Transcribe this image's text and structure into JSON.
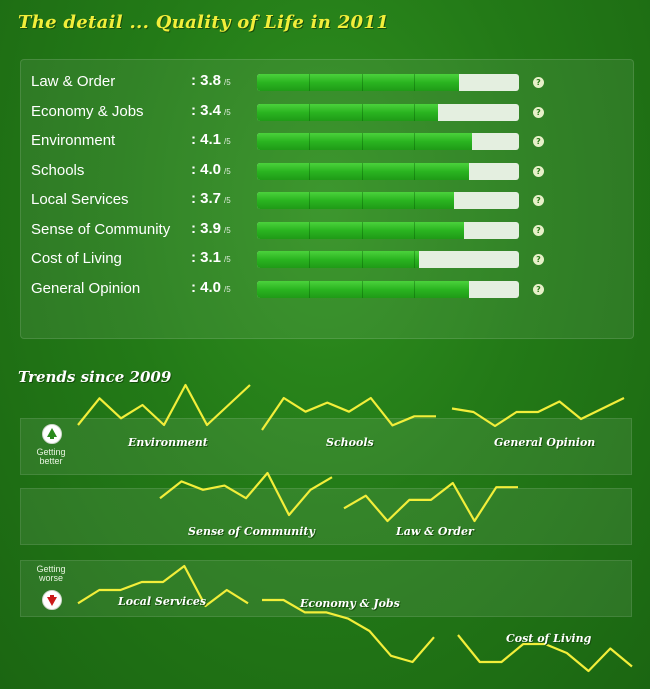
{
  "title": "The detail ... Quality of Life in 2011",
  "ratings": {
    "denominator": "/5",
    "help_glyph": "?",
    "items": [
      {
        "label": "Law & Order",
        "score": "3.8",
        "value": 3.8,
        "bar_fraction": 0.77
      },
      {
        "label": "Economy & Jobs",
        "score": "3.4",
        "value": 3.4,
        "bar_fraction": 0.69
      },
      {
        "label": "Environment",
        "score": "4.1",
        "value": 4.1,
        "bar_fraction": 0.82
      },
      {
        "label": "Schools",
        "score": "4.0",
        "value": 4.0,
        "bar_fraction": 0.81
      },
      {
        "label": "Local Services",
        "score": "3.7",
        "value": 3.7,
        "bar_fraction": 0.75
      },
      {
        "label": "Sense of Community",
        "score": "3.9",
        "value": 3.9,
        "bar_fraction": 0.79
      },
      {
        "label": "Cost of Living",
        "score": "3.1",
        "value": 3.1,
        "bar_fraction": 0.62
      },
      {
        "label": "General Opinion",
        "score": "4.0",
        "value": 4.0,
        "bar_fraction": 0.81
      }
    ]
  },
  "trends": {
    "title": "Trends since 2009",
    "getting_better": "Getting better",
    "getting_worse": "Getting worse",
    "line_color": "#f2ee3a",
    "items": [
      {
        "label": "Environment",
        "direction": "better",
        "values": [
          3.6,
          4.0,
          3.7,
          3.9,
          3.6,
          4.2,
          3.6,
          3.9,
          4.2
        ]
      },
      {
        "label": "Schools",
        "direction": "better",
        "values": [
          3.3,
          4.0,
          3.7,
          3.9,
          3.7,
          4.0,
          3.4,
          3.6,
          3.6
        ]
      },
      {
        "label": "General Opinion",
        "direction": "better",
        "values": [
          3.7,
          3.6,
          3.2,
          3.6,
          3.6,
          3.9,
          3.4,
          3.7,
          4.0
        ]
      },
      {
        "label": "Sense of Community",
        "direction": "same",
        "values": [
          3.4,
          3.8,
          3.6,
          3.7,
          3.4,
          4.0,
          3.0,
          3.6,
          3.9
        ]
      },
      {
        "label": "Law & Order",
        "direction": "same",
        "values": [
          3.3,
          3.6,
          3.0,
          3.5,
          3.5,
          3.9,
          3.0,
          3.8,
          3.8
        ]
      },
      {
        "label": "Local Services",
        "direction": "worse",
        "values": [
          3.4,
          3.9,
          3.9,
          4.2,
          4.2,
          4.8,
          3.3,
          3.9,
          3.4
        ]
      },
      {
        "label": "Economy & Jobs",
        "direction": "worse",
        "values": [
          4.2,
          4.2,
          3.8,
          3.8,
          3.6,
          3.2,
          2.4,
          2.2,
          3.0
        ]
      },
      {
        "label": "Cost of Living",
        "direction": "worse",
        "values": [
          3.8,
          3.2,
          3.2,
          3.6,
          3.6,
          3.4,
          3.0,
          3.5,
          3.1
        ]
      }
    ]
  }
}
